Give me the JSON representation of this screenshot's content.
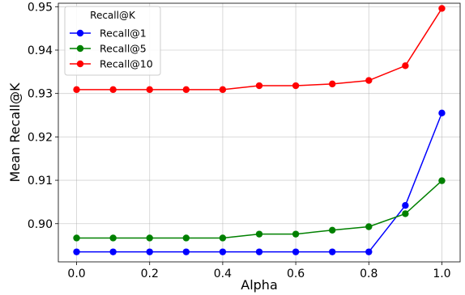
{
  "chart_data": {
    "type": "line",
    "title": "",
    "xlabel": "Alpha",
    "ylabel": "Mean Recall@K",
    "x": [
      0.0,
      0.1,
      0.2,
      0.3,
      0.4,
      0.5,
      0.6,
      0.7,
      0.8,
      0.9,
      1.0
    ],
    "xlim": [
      -0.05,
      1.05
    ],
    "ylim": [
      0.8912,
      0.9508
    ],
    "x_ticks": [
      "0.0",
      "0.2",
      "0.4",
      "0.6",
      "0.8",
      "1.0"
    ],
    "y_ticks": [
      "0.90",
      "0.91",
      "0.92",
      "0.93",
      "0.94",
      "0.95"
    ],
    "grid": true,
    "legend": {
      "title": "Recall@K",
      "position": "top-left"
    },
    "series": [
      {
        "name": "Recall@1",
        "color": "#0000ff",
        "values": [
          0.8935,
          0.8935,
          0.8935,
          0.8935,
          0.8935,
          0.8935,
          0.8935,
          0.8935,
          0.8935,
          0.9042,
          0.9255
        ]
      },
      {
        "name": "Recall@5",
        "color": "#008000",
        "values": [
          0.8967,
          0.8967,
          0.8967,
          0.8967,
          0.8967,
          0.8976,
          0.8976,
          0.8985,
          0.8993,
          0.9023,
          0.9099
        ]
      },
      {
        "name": "Recall@10",
        "color": "#ff0000",
        "values": [
          0.9309,
          0.9309,
          0.9309,
          0.9309,
          0.9309,
          0.9318,
          0.9318,
          0.9322,
          0.933,
          0.9364,
          0.9496
        ]
      }
    ]
  }
}
